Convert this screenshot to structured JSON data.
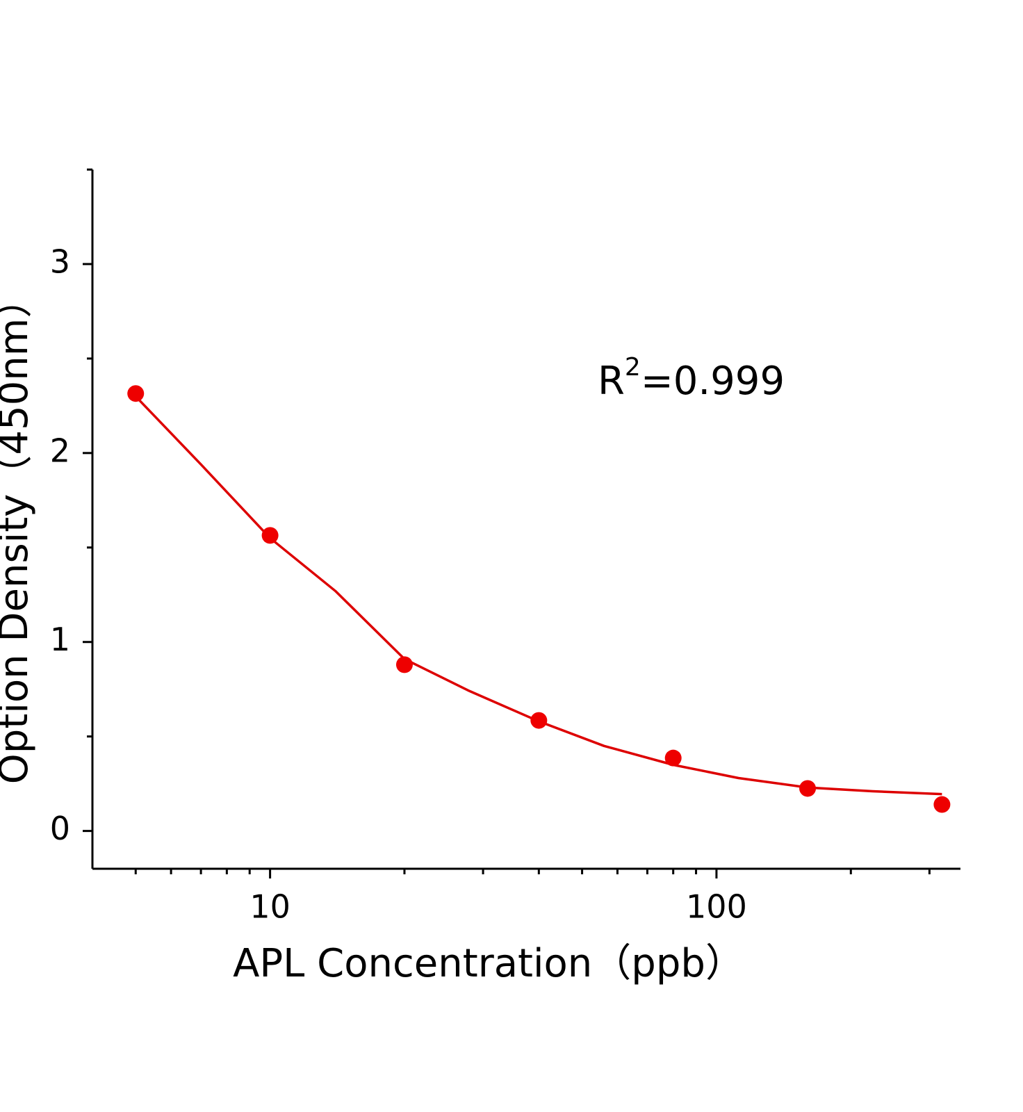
{
  "chart_data": {
    "type": "scatter",
    "x_label": "APL Concentration（ppb）",
    "y_label": "Option Density（450nm）",
    "annotation": [
      "R",
      "2",
      "=0.999"
    ],
    "x": [
      5,
      10,
      20,
      40,
      80,
      160,
      320
    ],
    "series": [
      {
        "color": "#ee0000",
        "values": [
          2.315,
          1.564,
          0.88,
          0.585,
          0.386,
          0.225,
          0.14
        ]
      }
    ],
    "fit": {
      "color": "#dd0000",
      "x": [
        5,
        7,
        10,
        14,
        20,
        28,
        40,
        56,
        80,
        112,
        160,
        224,
        320
      ],
      "values": [
        2.3,
        1.94,
        1.55,
        1.27,
        0.91,
        0.74,
        0.58,
        0.45,
        0.35,
        0.28,
        0.23,
        0.21,
        0.195
      ]
    },
    "xscale": "log",
    "xlim": [
      4,
      352
    ],
    "xticks": [
      10,
      100
    ],
    "xminorticks": [
      5,
      6,
      7,
      8,
      9,
      20,
      30,
      40,
      50,
      60,
      70,
      80,
      90,
      200,
      300
    ],
    "ylim": [
      -0.2,
      3.5
    ],
    "yticks": [
      0,
      1,
      2,
      3
    ],
    "yminorticks": [
      0.5,
      1.5,
      2.5,
      3.5
    ]
  }
}
